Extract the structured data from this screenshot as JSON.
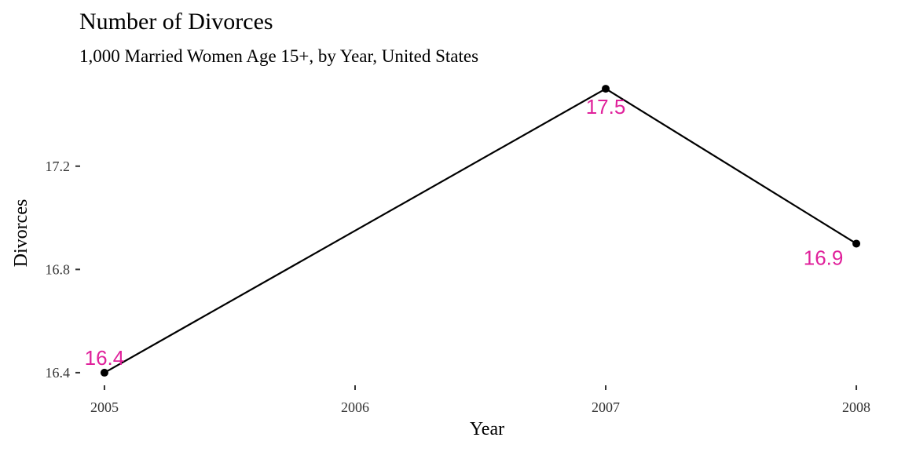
{
  "chart_data": {
    "type": "line",
    "title": "Number of Divorces",
    "subtitle": "1,000 Married Women Age 15+, by Year, United States",
    "xlabel": "Year",
    "ylabel": "Divorces",
    "x": [
      2005,
      2007,
      2008
    ],
    "values": [
      16.4,
      17.5,
      16.9
    ],
    "data_labels": [
      "16.4",
      "17.5",
      "16.9"
    ],
    "x_ticks": [
      2005,
      2006,
      2007,
      2008
    ],
    "x_tick_labels": [
      "2005",
      "2006",
      "2007",
      "2008"
    ],
    "y_ticks": [
      16.4,
      16.8,
      17.2
    ],
    "y_tick_labels": [
      "16.4",
      "16.8",
      "17.2"
    ],
    "xlim": [
      2004.95,
      2008.05
    ],
    "ylim": [
      16.345,
      17.555
    ],
    "grid": false,
    "line_color": "#000000",
    "point_color": "#000000",
    "label_color": "#E0219B"
  }
}
